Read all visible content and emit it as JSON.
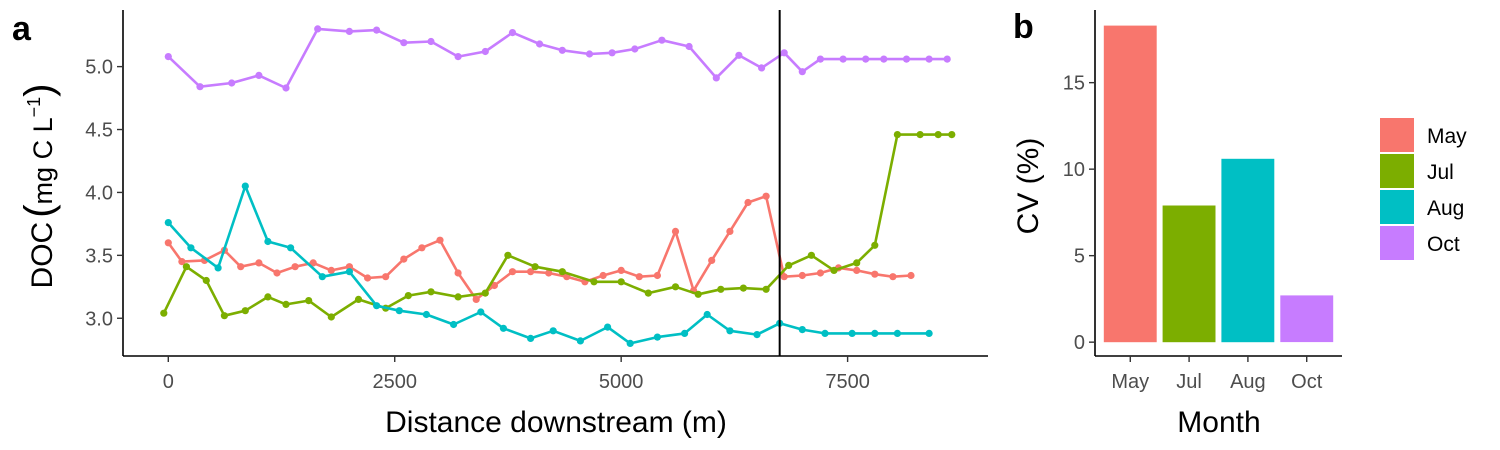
{
  "panel_a": {
    "letter": "a",
    "xlabel": "Distance downstream (m)",
    "ylabel_main": "DOC",
    "ylabel_units": "mg C L",
    "ylabel_exp": "−1"
  },
  "panel_b": {
    "letter": "b",
    "xlabel": "Month",
    "ylabel": "CV (%)"
  },
  "legend": {
    "entries": [
      {
        "label": "May",
        "color": "#F8766D"
      },
      {
        "label": "Jul",
        "color": "#7CAE00"
      },
      {
        "label": "Aug",
        "color": "#00BFC4"
      },
      {
        "label": "Oct",
        "color": "#C77CFF"
      }
    ]
  },
  "chart_data": [
    {
      "type": "line",
      "xlabel": "Distance downstream (m)",
      "ylabel": "DOC (mg C L−1)",
      "xlim": [
        -500,
        9050
      ],
      "ylim": [
        2.7,
        5.45
      ],
      "xticks": [
        0,
        2500,
        5000,
        7500
      ],
      "xtick_labels": [
        "0",
        "2500",
        "5000",
        "7500"
      ],
      "yticks": [
        3.0,
        3.5,
        4.0,
        4.5,
        5.0
      ],
      "ytick_labels": [
        "3.0",
        "3.5",
        "4.0",
        "4.5",
        "5.0"
      ],
      "vline_x": 6750,
      "grid": false,
      "series": [
        {
          "name": "May",
          "color": "#F8766D",
          "x": [
            0,
            150,
            400,
            620,
            800,
            1000,
            1200,
            1400,
            1600,
            1800,
            2000,
            2200,
            2400,
            2600,
            2800,
            3000,
            3200,
            3400,
            3600,
            3800,
            4000,
            4200,
            4400,
            4600,
            4800,
            5000,
            5200,
            5400,
            5600,
            5800,
            6000,
            6200,
            6400,
            6600,
            6800,
            7000,
            7200,
            7400,
            7600,
            7800,
            8000,
            8200
          ],
          "y": [
            3.6,
            3.45,
            3.46,
            3.54,
            3.41,
            3.44,
            3.36,
            3.41,
            3.44,
            3.38,
            3.41,
            3.32,
            3.33,
            3.47,
            3.56,
            3.62,
            3.36,
            3.15,
            3.26,
            3.37,
            3.37,
            3.36,
            3.33,
            3.29,
            3.34,
            3.38,
            3.33,
            3.34,
            3.69,
            3.22,
            3.46,
            3.69,
            3.92,
            3.97,
            3.33,
            3.34,
            3.36,
            3.4,
            3.38,
            3.35,
            3.33,
            3.34
          ]
        },
        {
          "name": "Jul",
          "color": "#7CAE00",
          "x": [
            -50,
            200,
            420,
            620,
            850,
            1100,
            1300,
            1550,
            1800,
            2100,
            2400,
            2650,
            2900,
            3200,
            3500,
            3750,
            4050,
            4350,
            4700,
            5000,
            5300,
            5600,
            5850,
            6100,
            6350,
            6600,
            6850,
            7100,
            7350,
            7600,
            7800,
            8050,
            8300,
            8500,
            8650
          ],
          "y": [
            3.04,
            3.41,
            3.3,
            3.02,
            3.06,
            3.17,
            3.11,
            3.14,
            3.01,
            3.15,
            3.08,
            3.18,
            3.21,
            3.17,
            3.2,
            3.5,
            3.41,
            3.37,
            3.29,
            3.29,
            3.2,
            3.25,
            3.19,
            3.23,
            3.24,
            3.23,
            3.42,
            3.5,
            3.38,
            3.44,
            3.58,
            4.46,
            4.46,
            4.46,
            4.46
          ]
        },
        {
          "name": "Aug",
          "color": "#00BFC4",
          "x": [
            0,
            250,
            550,
            850,
            1100,
            1350,
            1700,
            2000,
            2300,
            2550,
            2850,
            3150,
            3450,
            3700,
            4000,
            4250,
            4550,
            4850,
            5100,
            5400,
            5700,
            5950,
            6200,
            6500,
            6750,
            7000,
            7250,
            7550,
            7800,
            8050,
            8400
          ],
          "y": [
            3.76,
            3.56,
            3.4,
            4.05,
            3.61,
            3.56,
            3.33,
            3.37,
            3.1,
            3.06,
            3.03,
            2.95,
            3.05,
            2.92,
            2.84,
            2.9,
            2.82,
            2.93,
            2.8,
            2.85,
            2.88,
            3.03,
            2.9,
            2.87,
            2.96,
            2.91,
            2.88,
            2.88,
            2.88,
            2.88,
            2.88
          ]
        },
        {
          "name": "Oct",
          "color": "#C77CFF",
          "x": [
            0,
            350,
            700,
            1000,
            1300,
            1650,
            2000,
            2300,
            2600,
            2900,
            3200,
            3500,
            3800,
            4100,
            4350,
            4650,
            4900,
            5150,
            5450,
            5750,
            6050,
            6300,
            6550,
            6800,
            7000,
            7200,
            7450,
            7700,
            7900,
            8150,
            8400,
            8600
          ],
          "y": [
            5.08,
            4.84,
            4.87,
            4.93,
            4.83,
            5.3,
            5.28,
            5.29,
            5.19,
            5.2,
            5.08,
            5.12,
            5.27,
            5.18,
            5.13,
            5.1,
            5.11,
            5.14,
            5.21,
            5.16,
            4.91,
            5.09,
            4.99,
            5.11,
            4.96,
            5.06,
            5.06,
            5.06,
            5.06,
            5.06,
            5.06,
            5.06
          ]
        }
      ]
    },
    {
      "type": "bar",
      "xlabel": "Month",
      "ylabel": "CV (%)",
      "categories": [
        "May",
        "Jul",
        "Aug",
        "Oct"
      ],
      "values": [
        18.3,
        7.9,
        10.6,
        2.7
      ],
      "colors": [
        "#F8766D",
        "#7CAE00",
        "#00BFC4",
        "#C77CFF"
      ],
      "ylim": [
        -0.8,
        19.2
      ],
      "yticks": [
        0,
        5,
        10,
        15
      ],
      "ytick_labels": [
        "0",
        "5",
        "10",
        "15"
      ],
      "grid": false
    }
  ]
}
